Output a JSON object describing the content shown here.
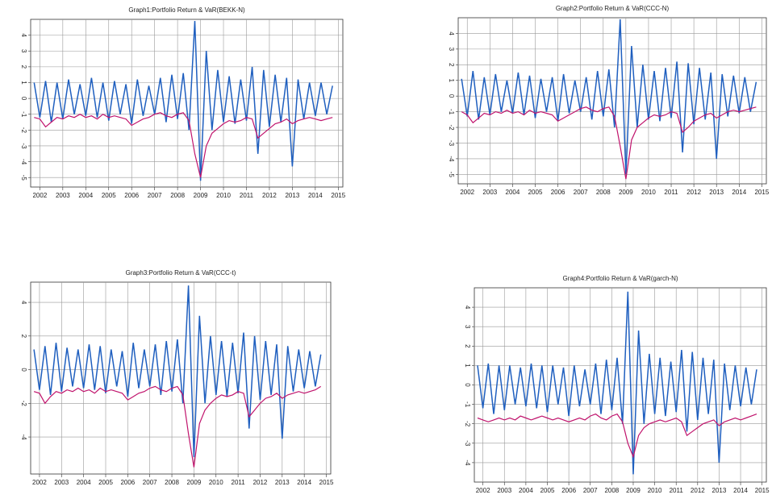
{
  "chart_data": [
    {
      "type": "line",
      "title": "Graph1:Portfolio Return & VaR(BEKK-N)",
      "x": [
        2001.75,
        2002,
        2002.25,
        2002.5,
        2002.75,
        2003,
        2003.25,
        2003.5,
        2003.75,
        2004,
        2004.25,
        2004.5,
        2004.75,
        2005,
        2005.25,
        2005.5,
        2005.75,
        2006,
        2006.25,
        2006.5,
        2006.75,
        2007,
        2007.25,
        2007.5,
        2007.75,
        2008,
        2008.25,
        2008.5,
        2008.75,
        2009,
        2009.25,
        2009.5,
        2009.75,
        2010,
        2010.25,
        2010.5,
        2010.75,
        2011,
        2011.25,
        2011.5,
        2011.75,
        2012,
        2012.25,
        2012.5,
        2012.75,
        2013,
        2013.25,
        2013.5,
        2013.75,
        2014,
        2014.25,
        2014.5,
        2014.75
      ],
      "series": [
        {
          "color": "#1f5fbf",
          "values": [
            1.0,
            -1.2,
            1.1,
            -1.5,
            1.0,
            -1.3,
            1.2,
            -1.0,
            0.9,
            -1.1,
            1.3,
            -1.2,
            1.0,
            -1.4,
            1.1,
            -1.0,
            0.9,
            -1.6,
            1.2,
            -1.1,
            0.8,
            -1.0,
            1.3,
            -1.5,
            1.5,
            -1.3,
            1.6,
            -2.0,
            4.9,
            -5.2,
            3.0,
            -2.0,
            1.8,
            -1.5,
            1.4,
            -1.6,
            1.2,
            -1.4,
            2.0,
            -3.5,
            1.8,
            -1.8,
            1.5,
            -1.5,
            1.3,
            -4.3,
            1.2,
            -1.3,
            1.0,
            -1.1,
            1.0,
            -1.0,
            0.8
          ]
        },
        {
          "color": "#c0136c",
          "values": [
            -1.2,
            -1.3,
            -1.8,
            -1.5,
            -1.2,
            -1.3,
            -1.1,
            -1.2,
            -1.0,
            -1.2,
            -1.1,
            -1.3,
            -1.0,
            -1.2,
            -1.1,
            -1.2,
            -1.3,
            -1.7,
            -1.5,
            -1.3,
            -1.2,
            -1.0,
            -0.9,
            -1.1,
            -1.2,
            -1.0,
            -0.9,
            -1.4,
            -3.5,
            -5.0,
            -3.0,
            -2.2,
            -1.9,
            -1.6,
            -1.4,
            -1.5,
            -1.4,
            -1.2,
            -1.3,
            -2.5,
            -2.2,
            -1.9,
            -1.6,
            -1.5,
            -1.3,
            -1.6,
            -1.4,
            -1.3,
            -1.2,
            -1.3,
            -1.4,
            -1.3,
            -1.2
          ]
        }
      ],
      "xlim": [
        2001.6,
        2015.2
      ],
      "xticks": [
        2002,
        2003,
        2004,
        2005,
        2006,
        2007,
        2008,
        2009,
        2010,
        2011,
        2012,
        2013,
        2014,
        2015
      ],
      "ylim": [
        -5.6,
        5
      ],
      "yticks": [
        4,
        3,
        2,
        1,
        0,
        -1,
        -2,
        -3,
        -4,
        -5
      ],
      "grid": true
    },
    {
      "type": "line",
      "title": "Graph2:Portfolio Return & VaR(CCC-N)",
      "x": [
        2001.75,
        2002,
        2002.25,
        2002.5,
        2002.75,
        2003,
        2003.25,
        2003.5,
        2003.75,
        2004,
        2004.25,
        2004.5,
        2004.75,
        2005,
        2005.25,
        2005.5,
        2005.75,
        2006,
        2006.25,
        2006.5,
        2006.75,
        2007,
        2007.25,
        2007.5,
        2007.75,
        2008,
        2008.25,
        2008.5,
        2008.75,
        2009,
        2009.25,
        2009.5,
        2009.75,
        2010,
        2010.25,
        2010.5,
        2010.75,
        2011,
        2011.25,
        2011.5,
        2011.75,
        2012,
        2012.25,
        2012.5,
        2012.75,
        2013,
        2013.25,
        2013.5,
        2013.75,
        2014,
        2014.25,
        2014.5,
        2014.75
      ],
      "series": [
        {
          "color": "#1f5fbf",
          "values": [
            1.1,
            -1.3,
            1.6,
            -1.5,
            1.2,
            -1.2,
            1.4,
            -1.0,
            1.0,
            -1.1,
            1.5,
            -1.2,
            1.3,
            -1.4,
            1.1,
            -1.0,
            1.2,
            -1.6,
            1.4,
            -1.1,
            1.0,
            -1.0,
            1.2,
            -1.5,
            1.6,
            -1.3,
            1.7,
            -2.0,
            4.9,
            -5.0,
            3.2,
            -2.0,
            2.0,
            -1.5,
            1.6,
            -1.6,
            1.8,
            -1.4,
            2.2,
            -3.6,
            2.1,
            -1.8,
            1.8,
            -1.5,
            1.5,
            -4.0,
            1.4,
            -1.3,
            1.3,
            -1.1,
            1.2,
            -1.0,
            0.9
          ]
        },
        {
          "color": "#c0136c",
          "values": [
            -1.0,
            -1.2,
            -1.7,
            -1.4,
            -1.1,
            -1.2,
            -1.0,
            -1.1,
            -0.9,
            -1.1,
            -1.0,
            -1.2,
            -0.9,
            -1.1,
            -1.0,
            -1.1,
            -1.2,
            -1.6,
            -1.4,
            -1.2,
            -1.0,
            -0.8,
            -0.7,
            -0.9,
            -1.0,
            -0.8,
            -0.7,
            -1.3,
            -3.2,
            -5.3,
            -2.8,
            -2.0,
            -1.7,
            -1.4,
            -1.2,
            -1.3,
            -1.2,
            -1.0,
            -1.1,
            -2.3,
            -2.0,
            -1.6,
            -1.4,
            -1.2,
            -1.1,
            -1.4,
            -1.2,
            -1.0,
            -0.9,
            -1.0,
            -0.9,
            -0.8,
            -0.7
          ]
        }
      ],
      "xlim": [
        2001.6,
        2015.2
      ],
      "xticks": [
        2002,
        2003,
        2004,
        2005,
        2006,
        2007,
        2008,
        2009,
        2010,
        2011,
        2012,
        2013,
        2014,
        2015
      ],
      "ylim": [
        -5.6,
        5
      ],
      "yticks": [
        4,
        3,
        2,
        1,
        0,
        -1,
        -2,
        -3,
        -4,
        -5
      ],
      "grid": true
    },
    {
      "type": "line",
      "title": "Graph3:Portfolio Return & VaR(CCC-t)",
      "x": [
        2001.75,
        2002,
        2002.25,
        2002.5,
        2002.75,
        2003,
        2003.25,
        2003.5,
        2003.75,
        2004,
        2004.25,
        2004.5,
        2004.75,
        2005,
        2005.25,
        2005.5,
        2005.75,
        2006,
        2006.25,
        2006.5,
        2006.75,
        2007,
        2007.25,
        2007.5,
        2007.75,
        2008,
        2008.25,
        2008.5,
        2008.75,
        2009,
        2009.25,
        2009.5,
        2009.75,
        2010,
        2010.25,
        2010.5,
        2010.75,
        2011,
        2011.25,
        2011.5,
        2011.75,
        2012,
        2012.25,
        2012.5,
        2012.75,
        2013,
        2013.25,
        2013.5,
        2013.75,
        2014,
        2014.25,
        2014.5,
        2014.75
      ],
      "series": [
        {
          "color": "#1f5fbf",
          "values": [
            1.2,
            -1.2,
            1.4,
            -1.5,
            1.6,
            -1.3,
            1.3,
            -1.0,
            1.2,
            -1.1,
            1.5,
            -1.2,
            1.4,
            -1.4,
            1.2,
            -1.0,
            1.1,
            -1.6,
            1.6,
            -1.1,
            1.2,
            -1.0,
            1.5,
            -1.5,
            1.7,
            -1.3,
            1.8,
            -2.0,
            5.0,
            -5.2,
            3.2,
            -2.0,
            2.0,
            -1.5,
            1.7,
            -1.6,
            1.6,
            -1.4,
            2.2,
            -3.5,
            2.0,
            -1.8,
            1.7,
            -1.5,
            1.5,
            -4.1,
            1.4,
            -1.3,
            1.2,
            -1.1,
            1.1,
            -1.0,
            0.9
          ]
        },
        {
          "color": "#c0136c",
          "values": [
            -1.3,
            -1.4,
            -2.0,
            -1.6,
            -1.3,
            -1.4,
            -1.2,
            -1.3,
            -1.1,
            -1.3,
            -1.2,
            -1.4,
            -1.1,
            -1.3,
            -1.2,
            -1.3,
            -1.4,
            -1.8,
            -1.6,
            -1.4,
            -1.3,
            -1.1,
            -1.0,
            -1.2,
            -1.3,
            -1.1,
            -1.0,
            -1.5,
            -3.8,
            -5.8,
            -3.2,
            -2.4,
            -2.0,
            -1.7,
            -1.5,
            -1.6,
            -1.5,
            -1.3,
            -1.4,
            -2.8,
            -2.4,
            -2.0,
            -1.7,
            -1.6,
            -1.4,
            -1.7,
            -1.5,
            -1.4,
            -1.3,
            -1.4,
            -1.3,
            -1.2,
            -1.0
          ]
        }
      ],
      "xlim": [
        2001.6,
        2015.2
      ],
      "xticks": [
        2002,
        2003,
        2004,
        2005,
        2006,
        2007,
        2008,
        2009,
        2010,
        2011,
        2012,
        2013,
        2014,
        2015
      ],
      "ylim": [
        -6.2,
        5.2
      ],
      "yticks": [
        4,
        2,
        0,
        -2,
        -4
      ],
      "grid": true
    },
    {
      "type": "line",
      "title": "Graph4:Portfolio Return & VaR(garch-N)",
      "x": [
        2001.75,
        2002,
        2002.25,
        2002.5,
        2002.75,
        2003,
        2003.25,
        2003.5,
        2003.75,
        2004,
        2004.25,
        2004.5,
        2004.75,
        2005,
        2005.25,
        2005.5,
        2005.75,
        2006,
        2006.25,
        2006.5,
        2006.75,
        2007,
        2007.25,
        2007.5,
        2007.75,
        2008,
        2008.25,
        2008.5,
        2008.75,
        2009,
        2009.25,
        2009.5,
        2009.75,
        2010,
        2010.25,
        2010.5,
        2010.75,
        2011,
        2011.25,
        2011.5,
        2011.75,
        2012,
        2012.25,
        2012.5,
        2012.75,
        2013,
        2013.25,
        2013.5,
        2013.75,
        2014,
        2014.25,
        2014.5,
        2014.75
      ],
      "series": [
        {
          "color": "#1f5fbf",
          "values": [
            1.0,
            -1.2,
            1.1,
            -1.5,
            1.0,
            -1.3,
            1.0,
            -1.0,
            0.9,
            -1.1,
            1.1,
            -1.2,
            1.0,
            -1.4,
            1.0,
            -1.0,
            0.9,
            -1.6,
            1.0,
            -1.1,
            0.8,
            -1.0,
            1.1,
            -1.5,
            1.3,
            -1.3,
            1.4,
            -2.0,
            4.8,
            -4.6,
            2.8,
            -2.0,
            1.6,
            -1.5,
            1.4,
            -1.6,
            1.2,
            -1.4,
            1.8,
            -2.4,
            1.7,
            -1.8,
            1.4,
            -1.5,
            1.3,
            -4.0,
            1.1,
            -1.3,
            1.0,
            -1.1,
            0.9,
            -1.0,
            0.8
          ]
        },
        {
          "color": "#c0136c",
          "values": [
            -1.7,
            -1.8,
            -1.9,
            -1.8,
            -1.7,
            -1.8,
            -1.7,
            -1.8,
            -1.6,
            -1.7,
            -1.8,
            -1.7,
            -1.6,
            -1.7,
            -1.8,
            -1.7,
            -1.8,
            -1.9,
            -1.8,
            -1.7,
            -1.8,
            -1.6,
            -1.5,
            -1.7,
            -1.8,
            -1.6,
            -1.5,
            -1.9,
            -3.0,
            -3.7,
            -2.6,
            -2.2,
            -2.0,
            -1.9,
            -1.8,
            -1.9,
            -1.8,
            -1.7,
            -1.9,
            -2.6,
            -2.4,
            -2.2,
            -2.0,
            -1.9,
            -1.8,
            -2.1,
            -1.9,
            -1.8,
            -1.7,
            -1.8,
            -1.7,
            -1.6,
            -1.5
          ]
        }
      ],
      "xlim": [
        2001.6,
        2015.2
      ],
      "xticks": [
        2002,
        2003,
        2004,
        2005,
        2006,
        2007,
        2008,
        2009,
        2010,
        2011,
        2012,
        2013,
        2014,
        2015
      ],
      "ylim": [
        -5,
        5
      ],
      "yticks": [
        4,
        3,
        2,
        1,
        0,
        -1,
        -2,
        -3,
        -4
      ],
      "grid": true
    }
  ]
}
